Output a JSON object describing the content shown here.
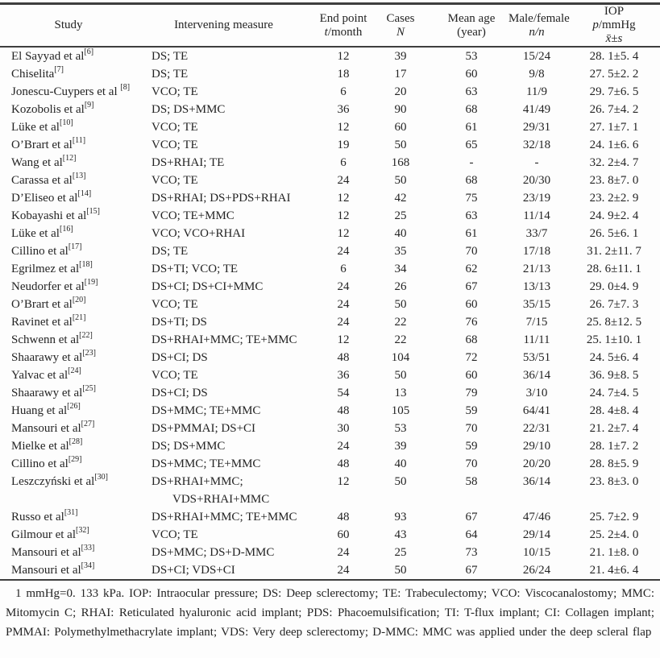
{
  "table": {
    "header": {
      "study": "Study",
      "measure": "Intervening measure",
      "endpoint": {
        "label": "End point",
        "var": "t",
        "unit": "/month"
      },
      "cases": {
        "label": "Cases",
        "var": "N",
        "unit": ""
      },
      "age": {
        "label": "Mean age",
        "sub": "(year)"
      },
      "mf": {
        "label": "Male/female",
        "var": "n/n"
      },
      "iop": {
        "label": "IOP",
        "var": "p",
        "unit": "/mmHg",
        "stat": "x̄±s"
      }
    },
    "rows": [
      {
        "study": "El Sayyad et al",
        "ref": "[6]",
        "measure": [
          "DS; TE"
        ],
        "endpoint": "12",
        "cases": "39",
        "age": "53",
        "mf": "15/24",
        "iop": "28. 1±5. 4"
      },
      {
        "study": "Chiselita",
        "ref": "[7]",
        "measure": [
          "DS; TE"
        ],
        "endpoint": "18",
        "cases": "17",
        "age": "60",
        "mf": "9/8",
        "iop": "27. 5±2. 2"
      },
      {
        "study": "Jonescu-Cuypers et al ",
        "ref": "[8]",
        "measure": [
          "VCO; TE"
        ],
        "endpoint": "6",
        "cases": "20",
        "age": "63",
        "mf": "11/9",
        "iop": "29. 7±6. 5"
      },
      {
        "study": "Kozobolis et al",
        "ref": "[9]",
        "measure": [
          "DS; DS+MMC"
        ],
        "endpoint": "36",
        "cases": "90",
        "age": "68",
        "mf": "41/49",
        "iop": "26. 7±4. 2"
      },
      {
        "study": "Lüke et al",
        "ref": "[10]",
        "measure": [
          "VCO; TE"
        ],
        "endpoint": "12",
        "cases": "60",
        "age": "61",
        "mf": "29/31",
        "iop": "27. 1±7. 1"
      },
      {
        "study": "O’Brart et al",
        "ref": "[11]",
        "measure": [
          "VCO; TE"
        ],
        "endpoint": "19",
        "cases": "50",
        "age": "65",
        "mf": "32/18",
        "iop": "24. 1±6. 6"
      },
      {
        "study": "Wang et al",
        "ref": "[12]",
        "measure": [
          "DS+RHAI; TE"
        ],
        "endpoint": "6",
        "cases": "168",
        "age": "-",
        "mf": "-",
        "iop": "32. 2±4. 7"
      },
      {
        "study": "Carassa et al",
        "ref": "[13]",
        "measure": [
          "VCO; TE"
        ],
        "endpoint": "24",
        "cases": "50",
        "age": "68",
        "mf": "20/30",
        "iop": "23. 8±7. 0"
      },
      {
        "study": "D’Eliseo et al",
        "ref": "[14]",
        "measure": [
          "DS+RHAI; DS+PDS+RHAI"
        ],
        "endpoint": "12",
        "cases": "42",
        "age": "75",
        "mf": "23/19",
        "iop": "23. 2±2. 9"
      },
      {
        "study": "Kobayashi et al",
        "ref": "[15]",
        "measure": [
          "VCO; TE+MMC"
        ],
        "endpoint": "12",
        "cases": "25",
        "age": "63",
        "mf": "11/14",
        "iop": "24. 9±2. 4"
      },
      {
        "study": "Lüke et al",
        "ref": "[16]",
        "measure": [
          "VCO; VCO+RHAI"
        ],
        "endpoint": "12",
        "cases": "40",
        "age": "61",
        "mf": "33/7",
        "iop": "26. 5±6. 1"
      },
      {
        "study": "Cillino et al",
        "ref": "[17]",
        "measure": [
          "DS; TE"
        ],
        "endpoint": "24",
        "cases": "35",
        "age": "70",
        "mf": "17/18",
        "iop": "31. 2±11. 7"
      },
      {
        "study": "Egrilmez et al",
        "ref": "[18]",
        "measure": [
          "DS+TI; VCO; TE"
        ],
        "endpoint": "6",
        "cases": "34",
        "age": "62",
        "mf": "21/13",
        "iop": "28. 6±11. 1"
      },
      {
        "study": "Neudorfer et al",
        "ref": "[19]",
        "measure": [
          "DS+CI; DS+CI+MMC"
        ],
        "endpoint": "24",
        "cases": "26",
        "age": "67",
        "mf": "13/13",
        "iop": "29. 0±4. 9"
      },
      {
        "study": "O’Brart et al",
        "ref": "[20]",
        "measure": [
          "VCO; TE"
        ],
        "endpoint": "24",
        "cases": "50",
        "age": "60",
        "mf": "35/15",
        "iop": "26. 7±7. 3"
      },
      {
        "study": "Ravinet et al",
        "ref": "[21]",
        "measure": [
          "DS+TI; DS"
        ],
        "endpoint": "24",
        "cases": "22",
        "age": "76",
        "mf": "7/15",
        "iop": "25. 8±12. 5"
      },
      {
        "study": "Schwenn et al",
        "ref": "[22]",
        "measure": [
          "DS+RHAI+MMC; TE+MMC"
        ],
        "endpoint": "12",
        "cases": "22",
        "age": "68",
        "mf": "11/11",
        "iop": "25. 1±10. 1"
      },
      {
        "study": "Shaarawy et al",
        "ref": "[23]",
        "measure": [
          "DS+CI; DS"
        ],
        "endpoint": "48",
        "cases": "104",
        "age": "72",
        "mf": "53/51",
        "iop": "24. 5±6. 4"
      },
      {
        "study": "Yalvac et al",
        "ref": "[24]",
        "measure": [
          "VCO; TE"
        ],
        "endpoint": "36",
        "cases": "50",
        "age": "60",
        "mf": "36/14",
        "iop": "36. 9±8. 5"
      },
      {
        "study": "Shaarawy et al",
        "ref": "[25]",
        "measure": [
          "DS+CI; DS"
        ],
        "endpoint": "54",
        "cases": "13",
        "age": "79",
        "mf": "3/10",
        "iop": "24. 7±4. 5"
      },
      {
        "study": "Huang et al",
        "ref": "[26]",
        "measure": [
          "DS+MMC; TE+MMC"
        ],
        "endpoint": "48",
        "cases": "105",
        "age": "59",
        "mf": "64/41",
        "iop": "28. 4±8. 4"
      },
      {
        "study": "Mansouri et al",
        "ref": "[27]",
        "measure": [
          "DS+PMMAI; DS+CI"
        ],
        "endpoint": "30",
        "cases": "53",
        "age": "70",
        "mf": "22/31",
        "iop": "21. 2±7. 4"
      },
      {
        "study": "Mielke et al",
        "ref": "[28]",
        "measure": [
          "DS; DS+MMC"
        ],
        "endpoint": "24",
        "cases": "39",
        "age": "59",
        "mf": "29/10",
        "iop": "28. 1±7. 2"
      },
      {
        "study": "Cillino et al",
        "ref": "[29]",
        "measure": [
          "DS+MMC; TE+MMC"
        ],
        "endpoint": "48",
        "cases": "40",
        "age": "70",
        "mf": "20/20",
        "iop": "28. 8±5. 9"
      },
      {
        "study": "Leszczyński et al",
        "ref": "[30]",
        "measure": [
          "DS+RHAI+MMC;",
          "VDS+RHAI+MMC"
        ],
        "endpoint": "12",
        "cases": "50",
        "age": "58",
        "mf": "36/14",
        "iop": "23. 8±3. 0"
      },
      {
        "study": "Russo et al",
        "ref": "[31]",
        "measure": [
          "DS+RHAI+MMC; TE+MMC"
        ],
        "endpoint": "48",
        "cases": "93",
        "age": "67",
        "mf": "47/46",
        "iop": "25. 7±2. 9"
      },
      {
        "study": "Gilmour et al",
        "ref": "[32]",
        "measure": [
          "VCO; TE"
        ],
        "endpoint": "60",
        "cases": "43",
        "age": "64",
        "mf": "29/14",
        "iop": "25. 2±4. 0"
      },
      {
        "study": "Mansouri et al",
        "ref": "[33]",
        "measure": [
          "DS+MMC; DS+D-MMC"
        ],
        "endpoint": "24",
        "cases": "25",
        "age": "73",
        "mf": "10/15",
        "iop": "21. 1±8. 0"
      },
      {
        "study": "Mansouri et al",
        "ref": "[34]",
        "measure": [
          "DS+CI; VDS+CI"
        ],
        "endpoint": "24",
        "cases": "50",
        "age": "67",
        "mf": "26/24",
        "iop": "21. 4±6. 4"
      }
    ]
  },
  "footnote": "1 mmHg=0. 133 kPa. IOP: Intraocular pressure; DS: Deep sclerectomy; TE: Trabeculectomy; VCO: Viscocanalostomy; MMC: Mitomycin C; RHAI: Reticulated hyaluronic acid implant; PDS: Phacoemulsification; TI: T-flux implant; CI: Collagen implant; PMMAI: Polymethylmethacrylate implant; VDS: Very deep sclerectomy; D-MMC: MMC was applied under the deep scleral flap"
}
